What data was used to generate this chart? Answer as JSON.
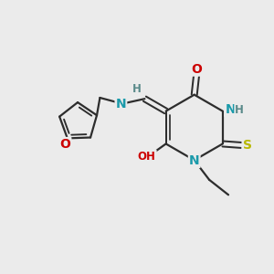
{
  "background_color": "#ebebeb",
  "figsize": [
    3.0,
    3.0
  ],
  "dpi": 100,
  "colors": {
    "C": "#2d2d2d",
    "N": "#1a9aaa",
    "O": "#cc0000",
    "S": "#b8b800",
    "H": "#5a8a8a",
    "bond": "#2d2d2d"
  },
  "bond_width": 1.6,
  "fs_main": 10,
  "fs_small": 8.5
}
